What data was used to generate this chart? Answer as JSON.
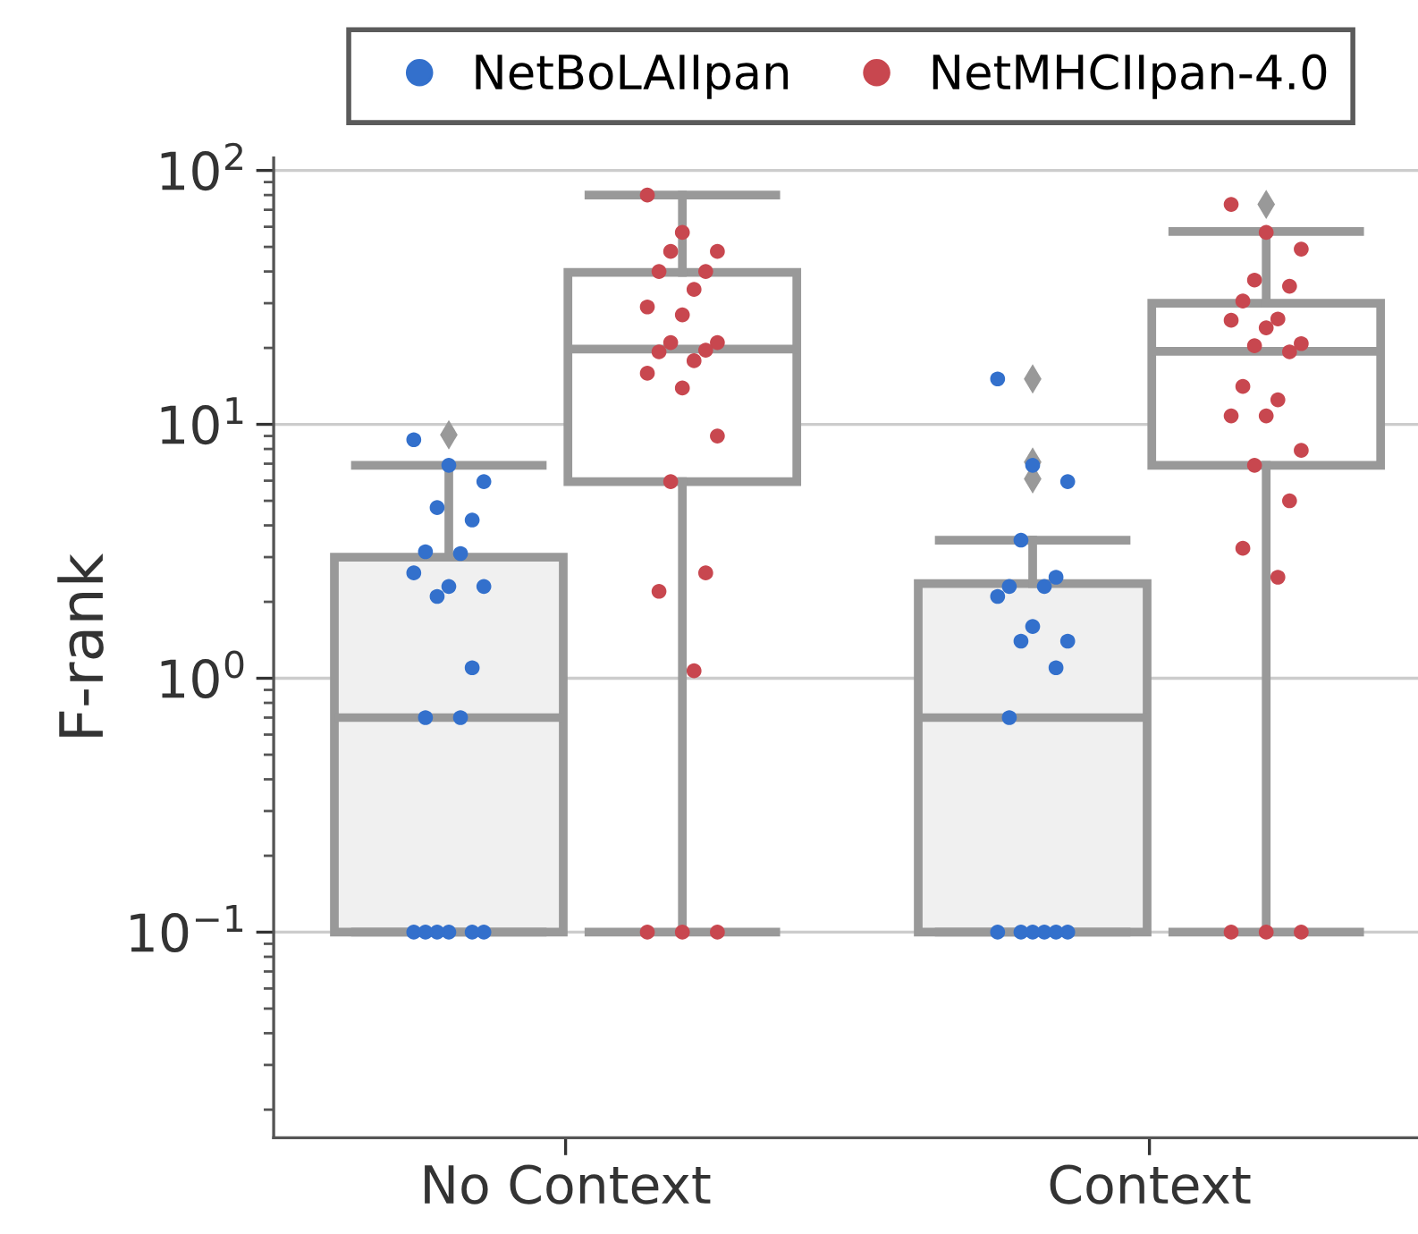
{
  "chart_data": {
    "type": "box",
    "ylabel": "F-rank",
    "categories": [
      "No Context",
      "Context"
    ],
    "log": true,
    "ylim": [
      0.0155,
      112
    ],
    "yticks": [
      {
        "value": 0.1,
        "label": "10$^{−1}$"
      },
      {
        "value": 1,
        "label": "10$^{0}$"
      },
      {
        "value": 10,
        "label": "10$^{1}$"
      },
      {
        "value": 100,
        "label": "10$^{2}$"
      }
    ],
    "grid": "y",
    "legend": "top",
    "marker": "circle",
    "series": [
      {
        "color": "#f0f0f0",
        "boxes": [
          {
            "low": 0.1,
            "q1": 0.1,
            "median": 0.7,
            "q3": 3.0,
            "high": 6.9,
            "outliers": [
              9.1
            ]
          },
          {
            "low": 0.1,
            "q1": 0.1,
            "median": 0.7,
            "q3": 2.36,
            "high": 3.5,
            "outliers": [
              15.1,
              7.1,
              6.1
            ]
          }
        ]
      },
      {
        "color": "#ffffff",
        "boxes": [
          {
            "low": 0.1,
            "q1": 5.95,
            "median": 19.8,
            "q3": 39.7,
            "high": 80
          },
          {
            "low": 0.1,
            "q1": 6.9,
            "median": 19.4,
            "q3": 30,
            "high": 57.5,
            "outliers": [
              73.5
            ]
          }
        ]
      },
      {
        "type": "scatter",
        "name": "NetBoLAIIpan",
        "color": "#3370cc",
        "x": [
          "No Context",
          "No Context",
          "No Context",
          "No Context",
          "No Context",
          "No Context",
          "No Context",
          "No Context",
          "No Context",
          "No Context",
          "No Context",
          "No Context",
          "No Context",
          "No Context",
          "No Context",
          "No Context",
          "No Context",
          "No Context",
          "No Context",
          "No Context",
          "Context",
          "Context",
          "Context",
          "Context",
          "Context",
          "Context",
          "Context",
          "Context",
          "Context",
          "Context",
          "Context",
          "Context",
          "Context",
          "Context",
          "Context",
          "Context",
          "Context",
          "Context",
          "Context"
        ],
        "values": [
          8.7,
          6.9,
          5.95,
          4.7,
          4.2,
          3.15,
          3.1,
          2.6,
          2.3,
          2.3,
          2.1,
          1.1,
          0.7,
          0.7,
          0.1,
          0.1,
          0.1,
          0.1,
          0.1,
          0.1,
          15.1,
          6.9,
          5.95,
          3.5,
          2.5,
          2.3,
          2.3,
          2.1,
          1.6,
          1.4,
          1.4,
          1.1,
          0.7,
          0.1,
          0.1,
          0.1,
          0.1,
          0.1,
          0.1
        ]
      },
      {
        "type": "scatter",
        "name": "NetMHCIIpan-4.0",
        "color": "#c8474f",
        "x": [
          "No Context",
          "No Context",
          "No Context",
          "No Context",
          "No Context",
          "No Context",
          "No Context",
          "No Context",
          "No Context",
          "No Context",
          "No Context",
          "No Context",
          "No Context",
          "No Context",
          "No Context",
          "No Context",
          "No Context",
          "No Context",
          "No Context",
          "No Context",
          "No Context",
          "No Context",
          "No Context",
          "No Context",
          "Context",
          "Context",
          "Context",
          "Context",
          "Context",
          "Context",
          "Context",
          "Context",
          "Context",
          "Context",
          "Context",
          "Context",
          "Context",
          "Context",
          "Context",
          "Context",
          "Context",
          "Context",
          "Context",
          "Context",
          "Context",
          "Context",
          "Context",
          "Context"
        ],
        "values": [
          80,
          57,
          48,
          48,
          40,
          40,
          34,
          29,
          27,
          21,
          21,
          19.6,
          19.3,
          17.8,
          15.9,
          13.9,
          9.0,
          5.95,
          2.6,
          2.2,
          1.07,
          0.1,
          0.1,
          0.1,
          73.5,
          57,
          49,
          37,
          35,
          30.6,
          26,
          25.7,
          24,
          20.8,
          20.4,
          19.3,
          14.1,
          12.5,
          10.8,
          10.8,
          7.9,
          6.9,
          5.0,
          3.25,
          2.5,
          0.1,
          0.1,
          0.1
        ]
      }
    ]
  }
}
